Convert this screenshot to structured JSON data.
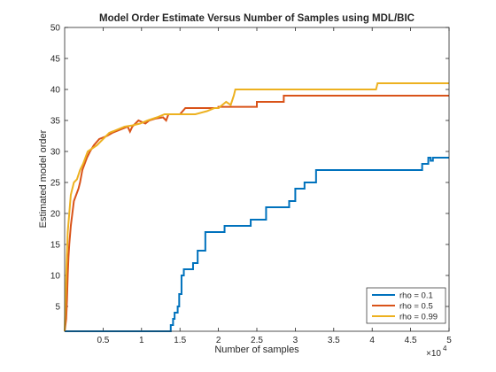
{
  "chart_data": {
    "type": "line",
    "title": "Model Order Estimate Versus Number of Samples using MDL/BIC",
    "xlabel": "Number of samples",
    "ylabel": "Estimated model order",
    "x_multiplier_label": "×10",
    "x_multiplier_exponent": "4",
    "xlim": [
      0,
      5
    ],
    "ylim": [
      1,
      50
    ],
    "x_ticks": [
      0.5,
      1,
      1.5,
      2,
      2.5,
      3,
      3.5,
      4,
      4.5,
      5
    ],
    "x_tick_labels": [
      "0.5",
      "1",
      "1.5",
      "2",
      "2.5",
      "3",
      "3.5",
      "4",
      "4.5",
      "5"
    ],
    "y_ticks": [
      5,
      10,
      15,
      20,
      25,
      30,
      35,
      40,
      45,
      50
    ],
    "y_tick_labels": [
      "5",
      "10",
      "15",
      "20",
      "25",
      "30",
      "35",
      "40",
      "45",
      "50"
    ],
    "legend_position": "bottom-right",
    "series": [
      {
        "name": "rho = 0.1",
        "color": "#0072BD",
        "points": [
          [
            0,
            1
          ],
          [
            1.38,
            1
          ],
          [
            1.38,
            2
          ],
          [
            1.41,
            2
          ],
          [
            1.41,
            3
          ],
          [
            1.43,
            3
          ],
          [
            1.43,
            4
          ],
          [
            1.47,
            4
          ],
          [
            1.47,
            5
          ],
          [
            1.49,
            5
          ],
          [
            1.49,
            7
          ],
          [
            1.52,
            7
          ],
          [
            1.52,
            10
          ],
          [
            1.55,
            10
          ],
          [
            1.55,
            11
          ],
          [
            1.67,
            11
          ],
          [
            1.67,
            12
          ],
          [
            1.73,
            12
          ],
          [
            1.73,
            14
          ],
          [
            1.83,
            14
          ],
          [
            1.83,
            17
          ],
          [
            2.08,
            17
          ],
          [
            2.08,
            18
          ],
          [
            2.42,
            18
          ],
          [
            2.42,
            19
          ],
          [
            2.62,
            19
          ],
          [
            2.62,
            21
          ],
          [
            2.92,
            21
          ],
          [
            2.92,
            22
          ],
          [
            3.0,
            22
          ],
          [
            3.0,
            24
          ],
          [
            3.12,
            24
          ],
          [
            3.12,
            25
          ],
          [
            3.27,
            25
          ],
          [
            3.27,
            27
          ],
          [
            4.65,
            27
          ],
          [
            4.65,
            28
          ],
          [
            4.73,
            28
          ],
          [
            4.73,
            29
          ],
          [
            4.76,
            29
          ],
          [
            4.76,
            28.5
          ],
          [
            4.79,
            28.5
          ],
          [
            4.79,
            29
          ],
          [
            5.0,
            29
          ]
        ]
      },
      {
        "name": "rho = 0.5",
        "color": "#D95319",
        "points": [
          [
            0,
            1
          ],
          [
            0.02,
            3
          ],
          [
            0.03,
            6
          ],
          [
            0.04,
            10
          ],
          [
            0.05,
            13
          ],
          [
            0.06,
            15
          ],
          [
            0.08,
            18
          ],
          [
            0.1,
            20
          ],
          [
            0.12,
            22
          ],
          [
            0.15,
            23
          ],
          [
            0.18,
            24
          ],
          [
            0.2,
            25
          ],
          [
            0.23,
            27
          ],
          [
            0.26,
            28
          ],
          [
            0.29,
            29
          ],
          [
            0.33,
            30
          ],
          [
            0.38,
            31
          ],
          [
            0.45,
            32
          ],
          [
            0.55,
            32.5
          ],
          [
            0.62,
            33
          ],
          [
            0.72,
            33.5
          ],
          [
            0.82,
            34
          ],
          [
            0.85,
            33.2
          ],
          [
            0.88,
            34
          ],
          [
            0.96,
            35
          ],
          [
            1.05,
            34.5
          ],
          [
            1.1,
            35
          ],
          [
            1.18,
            35.3
          ],
          [
            1.28,
            35.5
          ],
          [
            1.32,
            35
          ],
          [
            1.35,
            36
          ],
          [
            1.5,
            36
          ],
          [
            1.57,
            37
          ],
          [
            2.0,
            37
          ],
          [
            2.0,
            37.2
          ],
          [
            2.5,
            37.2
          ],
          [
            2.5,
            38
          ],
          [
            2.85,
            38
          ],
          [
            2.85,
            39
          ],
          [
            5.0,
            39
          ]
        ]
      },
      {
        "name": "rho = 0.99",
        "color": "#EDB120",
        "points": [
          [
            0,
            1
          ],
          [
            0.02,
            10
          ],
          [
            0.04,
            17
          ],
          [
            0.06,
            20
          ],
          [
            0.08,
            23
          ],
          [
            0.1,
            24
          ],
          [
            0.12,
            25
          ],
          [
            0.16,
            25.5
          ],
          [
            0.2,
            27
          ],
          [
            0.24,
            28
          ],
          [
            0.27,
            29
          ],
          [
            0.3,
            30
          ],
          [
            0.36,
            30.5
          ],
          [
            0.42,
            31
          ],
          [
            0.5,
            32
          ],
          [
            0.58,
            33
          ],
          [
            0.68,
            33.5
          ],
          [
            0.78,
            34
          ],
          [
            0.88,
            34.2
          ],
          [
            0.98,
            34.5
          ],
          [
            1.08,
            35
          ],
          [
            1.2,
            35.5
          ],
          [
            1.3,
            36
          ],
          [
            1.5,
            36
          ],
          [
            1.7,
            36
          ],
          [
            1.85,
            36.5
          ],
          [
            1.95,
            37
          ],
          [
            2.0,
            37
          ],
          [
            2.1,
            38
          ],
          [
            2.16,
            37.5
          ],
          [
            2.2,
            39
          ],
          [
            2.22,
            40
          ],
          [
            4.05,
            40
          ],
          [
            4.07,
            41
          ],
          [
            5.0,
            41
          ]
        ]
      }
    ]
  }
}
